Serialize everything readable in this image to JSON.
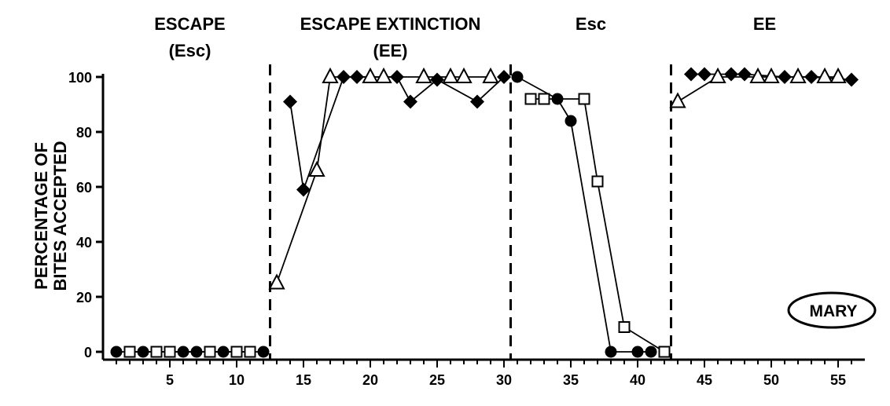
{
  "chart_data": {
    "type": "line",
    "ylabel": [
      "PERCENTAGE OF",
      "BITES ACCEPTED"
    ],
    "xlim": [
      0,
      57
    ],
    "ylim": [
      0,
      100
    ],
    "xticks": [
      5,
      10,
      15,
      20,
      25,
      30,
      35,
      40,
      45,
      50,
      55
    ],
    "yticks": [
      0,
      20,
      40,
      60,
      80,
      100
    ],
    "grid": false,
    "phases": [
      {
        "label": [
          "ESCAPE",
          "(Esc)"
        ],
        "center": 6.5
      },
      {
        "label": [
          "ESCAPE EXTINCTION",
          "(EE)"
        ],
        "center": 21.5
      },
      {
        "label": [
          "Esc"
        ],
        "center": 36.5
      },
      {
        "label": [
          "EE"
        ],
        "center": 49.5
      }
    ],
    "phase_lines": [
      12.5,
      30.5,
      42.5
    ],
    "annotation": "MARY",
    "series": [
      {
        "marker": "circle",
        "segments": [
          [
            [
              1,
              0
            ],
            [
              3,
              0
            ],
            [
              6,
              0
            ],
            [
              7,
              0
            ],
            [
              9,
              0
            ],
            [
              12,
              0
            ]
          ],
          [
            [
              31,
              100
            ],
            [
              34,
              92
            ],
            [
              35,
              84
            ],
            [
              38,
              0
            ],
            [
              40,
              0
            ],
            [
              41,
              0
            ]
          ]
        ]
      },
      {
        "marker": "square",
        "segments": [
          [
            [
              2,
              0
            ],
            [
              4,
              0
            ],
            [
              5,
              0
            ],
            [
              8,
              0
            ],
            [
              10,
              0
            ],
            [
              11,
              0
            ]
          ],
          [
            [
              32,
              92
            ],
            [
              33,
              92
            ],
            [
              36,
              92
            ],
            [
              37,
              62
            ],
            [
              39,
              9
            ],
            [
              42,
              0
            ]
          ]
        ]
      },
      {
        "marker": "diamond",
        "segments": [
          [
            [
              14,
              91
            ],
            [
              15,
              59
            ],
            [
              18,
              100
            ],
            [
              19,
              100
            ],
            [
              22,
              100
            ],
            [
              23,
              91
            ],
            [
              25,
              99
            ],
            [
              28,
              91
            ],
            [
              30,
              100
            ]
          ],
          [
            [
              44,
              101
            ],
            [
              45,
              101
            ],
            [
              47,
              101
            ],
            [
              48,
              101
            ],
            [
              51,
              100
            ],
            [
              53,
              100
            ],
            [
              56,
              99
            ]
          ]
        ]
      },
      {
        "marker": "triangle",
        "segments": [
          [
            [
              13,
              25
            ],
            [
              16,
              66
            ],
            [
              17,
              100
            ],
            [
              20,
              100
            ],
            [
              21,
              100
            ],
            [
              24,
              100
            ],
            [
              26,
              100
            ],
            [
              27,
              100
            ],
            [
              29,
              100
            ]
          ],
          [
            [
              43,
              91
            ],
            [
              46,
              100
            ],
            [
              49,
              100
            ],
            [
              50,
              100
            ],
            [
              52,
              100
            ],
            [
              54,
              100
            ],
            [
              55,
              100
            ]
          ]
        ]
      }
    ]
  }
}
